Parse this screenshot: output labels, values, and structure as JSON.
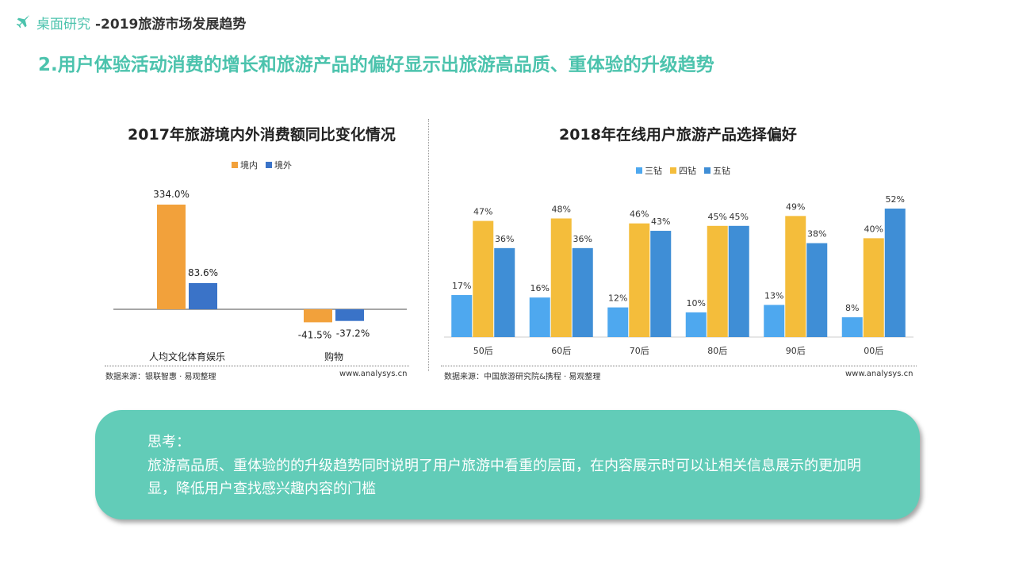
{
  "header": {
    "brand": "桌面研究",
    "subtitle": "-2019旅游市场发展趋势",
    "icon": "airplane-icon"
  },
  "headline": "2.用户体验活动消费的增长和旅游产品的偏好显示出旅游高品质、重体验的升级趋势",
  "chart_data": [
    {
      "type": "bar",
      "title": "2017年旅游境内外消费额同比变化情况",
      "categories": [
        "人均文化体育娱乐",
        "购物"
      ],
      "series": [
        {
          "name": "境内",
          "values": [
            334.0,
            -41.5
          ],
          "color": "#f2a13b"
        },
        {
          "name": "境外",
          "values": [
            83.6,
            -37.2
          ],
          "color": "#3a73c8"
        }
      ],
      "data_labels": [
        [
          "334.0%",
          "-41.5%"
        ],
        [
          "83.6%",
          "-37.2%"
        ]
      ],
      "legend": "top",
      "grid": false,
      "source": "数据来源：银联智惠 · 易观整理",
      "site": "www.analysys.cn"
    },
    {
      "type": "bar",
      "title": "2018年在线用户旅游产品选择偏好",
      "categories": [
        "50后",
        "60后",
        "70后",
        "80后",
        "90后",
        "00后"
      ],
      "series": [
        {
          "name": "三钻",
          "values": [
            17,
            16,
            12,
            10,
            13,
            8
          ],
          "color": "#4ea8ef"
        },
        {
          "name": "四钻",
          "values": [
            47,
            48,
            46,
            45,
            49,
            40
          ],
          "color": "#f4bd3b"
        },
        {
          "name": "五钻",
          "values": [
            36,
            36,
            43,
            45,
            38,
            52
          ],
          "color": "#3f8ed6"
        }
      ],
      "unit": "%",
      "legend": "top",
      "grid": false,
      "source": "数据来源：中国旅游研究院&携程 · 易观整理",
      "site": "www.analysys.cn"
    }
  ],
  "note": {
    "title": "思考：",
    "body": "旅游高品质、重体验的的升级趋势同时说明了用户旅游中看重的层面，在内容展示时可以让相关信息展示的更加明显，降低用户查找感兴趣内容的门槛"
  }
}
